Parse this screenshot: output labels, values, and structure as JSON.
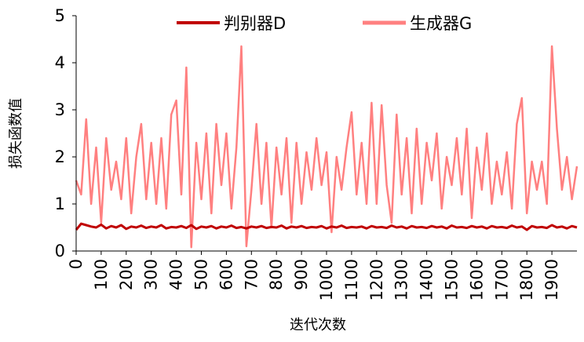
{
  "chart_data": {
    "type": "line",
    "x_label": "迭代次数",
    "y_label": "损失函数值",
    "x": [
      0,
      20,
      40,
      60,
      80,
      100,
      120,
      140,
      160,
      180,
      200,
      220,
      240,
      260,
      280,
      300,
      320,
      340,
      360,
      380,
      400,
      420,
      440,
      460,
      480,
      500,
      520,
      540,
      560,
      580,
      600,
      620,
      640,
      660,
      680,
      700,
      720,
      740,
      760,
      780,
      800,
      820,
      840,
      860,
      880,
      900,
      920,
      940,
      960,
      980,
      1000,
      1020,
      1040,
      1060,
      1080,
      1100,
      1120,
      1140,
      1160,
      1180,
      1200,
      1220,
      1240,
      1260,
      1280,
      1300,
      1320,
      1340,
      1360,
      1380,
      1400,
      1420,
      1440,
      1460,
      1480,
      1500,
      1520,
      1540,
      1560,
      1580,
      1600,
      1620,
      1640,
      1660,
      1680,
      1700,
      1720,
      1740,
      1760,
      1780,
      1800,
      1820,
      1840,
      1860,
      1880,
      1900,
      1920,
      1940,
      1960,
      1980,
      2000
    ],
    "series": [
      {
        "name": "判别器D",
        "color": "#c00000",
        "values": [
          0.45,
          0.58,
          0.55,
          0.52,
          0.5,
          0.56,
          0.48,
          0.53,
          0.5,
          0.55,
          0.47,
          0.52,
          0.5,
          0.54,
          0.49,
          0.52,
          0.5,
          0.55,
          0.48,
          0.51,
          0.5,
          0.53,
          0.49,
          0.55,
          0.47,
          0.52,
          0.5,
          0.53,
          0.48,
          0.52,
          0.5,
          0.54,
          0.49,
          0.51,
          0.48,
          0.52,
          0.5,
          0.53,
          0.49,
          0.51,
          0.5,
          0.54,
          0.48,
          0.52,
          0.5,
          0.53,
          0.49,
          0.51,
          0.5,
          0.53,
          0.48,
          0.52,
          0.5,
          0.54,
          0.49,
          0.51,
          0.5,
          0.52,
          0.48,
          0.53,
          0.5,
          0.51,
          0.49,
          0.54,
          0.5,
          0.52,
          0.48,
          0.53,
          0.5,
          0.51,
          0.49,
          0.53,
          0.5,
          0.52,
          0.48,
          0.54,
          0.5,
          0.51,
          0.49,
          0.53,
          0.5,
          0.52,
          0.48,
          0.53,
          0.5,
          0.51,
          0.49,
          0.54,
          0.5,
          0.52,
          0.45,
          0.53,
          0.5,
          0.51,
          0.49,
          0.55,
          0.5,
          0.52,
          0.48,
          0.53,
          0.5
        ]
      },
      {
        "name": "生成器G",
        "color": "#ff8080",
        "values": [
          1.5,
          1.2,
          2.8,
          1.0,
          2.2,
          0.6,
          2.4,
          1.3,
          1.9,
          1.1,
          2.4,
          0.8,
          2.0,
          2.7,
          1.1,
          2.3,
          1.0,
          2.4,
          0.9,
          2.9,
          3.2,
          1.2,
          3.9,
          0.08,
          2.3,
          1.1,
          2.5,
          0.8,
          2.7,
          1.4,
          2.5,
          0.9,
          2.2,
          4.35,
          0.1,
          1.3,
          2.7,
          1.0,
          2.3,
          0.5,
          2.2,
          1.2,
          2.4,
          0.6,
          2.3,
          1.0,
          2.1,
          1.3,
          2.4,
          1.4,
          2.1,
          0.4,
          2.0,
          1.3,
          2.2,
          2.95,
          1.2,
          2.3,
          1.0,
          3.15,
          1.0,
          3.1,
          1.4,
          0.6,
          2.9,
          1.2,
          2.4,
          0.8,
          2.6,
          1.0,
          2.3,
          1.5,
          2.5,
          0.9,
          2.0,
          1.4,
          2.4,
          1.2,
          2.6,
          0.7,
          2.2,
          1.3,
          2.5,
          1.0,
          1.9,
          1.2,
          2.1,
          0.9,
          2.7,
          3.25,
          0.8,
          1.9,
          1.3,
          1.9,
          1.0,
          4.35,
          2.6,
          1.3,
          2.0,
          1.1,
          1.8
        ]
      }
    ],
    "xlim": [
      0,
      2000
    ],
    "ylim": [
      0,
      5
    ],
    "xticks": [
      0,
      100,
      200,
      300,
      400,
      500,
      600,
      700,
      800,
      900,
      1000,
      1100,
      1200,
      1300,
      1400,
      1500,
      1600,
      1700,
      1800,
      1900
    ],
    "yticks": [
      0,
      1,
      2,
      3,
      4,
      5
    ],
    "grid": false,
    "legend": "top"
  }
}
